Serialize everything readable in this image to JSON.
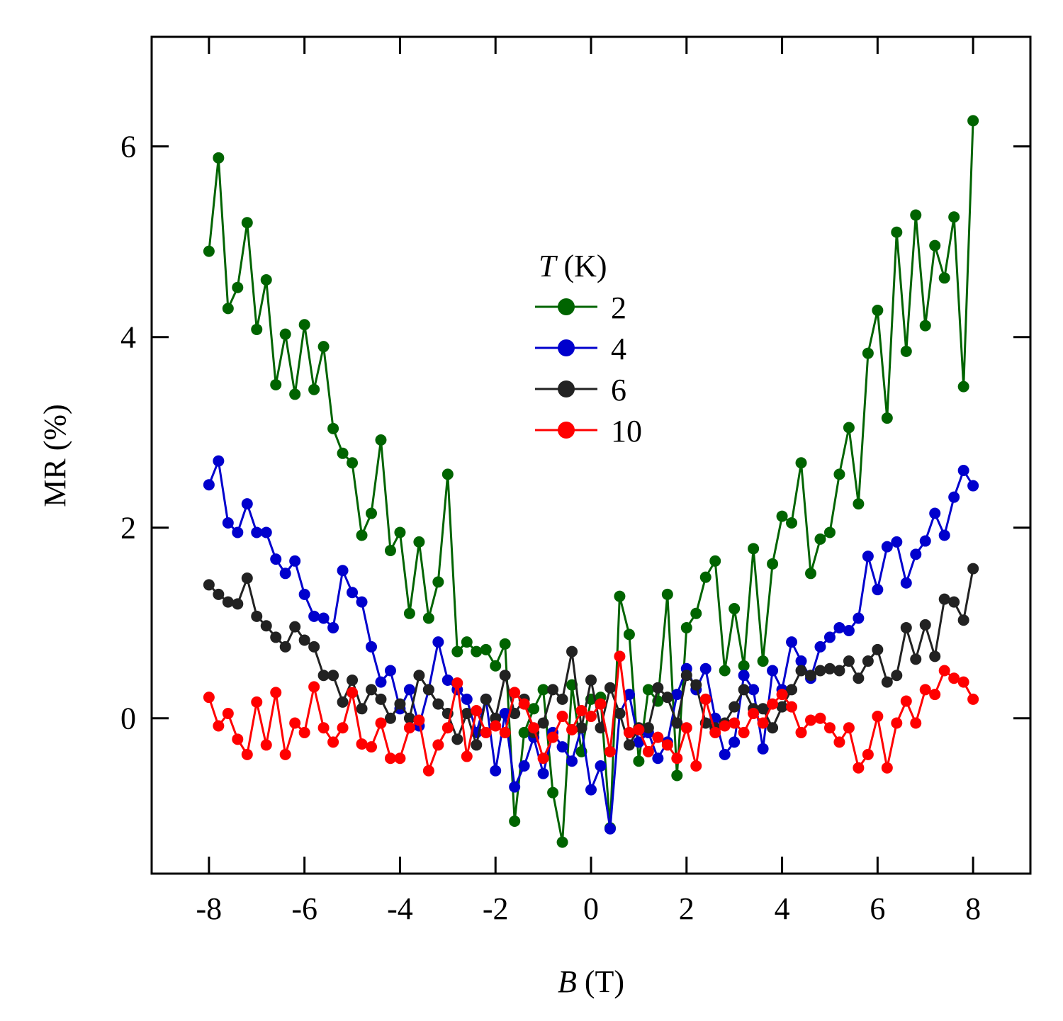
{
  "chart_data": {
    "type": "line",
    "title": "",
    "xlabel_var": "B",
    "xlabel_unit": "(T)",
    "ylabel": "MR (%)",
    "xlim": [
      -9.2,
      9.2
    ],
    "ylim": [
      -1.63,
      7.15
    ],
    "xticks": [
      -8,
      -6,
      -4,
      -2,
      0,
      2,
      4,
      6,
      8
    ],
    "xtick_labels": [
      "-8",
      "-6",
      "-4",
      "-2",
      "0",
      "2",
      "4",
      "6",
      "8"
    ],
    "yticks": [
      0,
      2,
      4,
      6
    ],
    "ytick_labels": [
      "0",
      "2",
      "4",
      "6"
    ],
    "grid": false,
    "legend": {
      "title_var": "T",
      "title_unit": "(K)",
      "placement": "upper-center"
    },
    "series": [
      {
        "name": "2",
        "color": "#006400",
        "x": [
          -8,
          -7.8,
          -7.6,
          -7.4,
          -7.2,
          -7.0,
          -6.8,
          -6.6,
          -6.4,
          -6.2,
          -6.0,
          -5.8,
          -5.6,
          -5.4,
          -5.2,
          -5.0,
          -4.8,
          -4.6,
          -4.4,
          -4.2,
          -4.0,
          -3.8,
          -3.6,
          -3.4,
          -3.2,
          -3.0,
          -2.8,
          -2.6,
          -2.4,
          -2.2,
          -2.0,
          -1.8,
          -1.6,
          -1.4,
          -1.2,
          -1.0,
          -0.8,
          -0.6,
          -0.4,
          -0.2,
          0,
          0.2,
          0.4,
          0.6,
          0.8,
          1.0,
          1.2,
          1.4,
          1.6,
          1.8,
          2.0,
          2.2,
          2.4,
          2.6,
          2.8,
          3.0,
          3.2,
          3.4,
          3.6,
          3.8,
          4.0,
          4.2,
          4.4,
          4.6,
          4.8,
          5.0,
          5.2,
          5.4,
          5.6,
          5.8,
          6.0,
          6.2,
          6.4,
          6.6,
          6.8,
          7.0,
          7.2,
          7.4,
          7.6,
          7.8,
          8.0
        ],
        "y": [
          4.9,
          5.88,
          4.3,
          4.52,
          5.2,
          4.08,
          4.6,
          3.5,
          4.03,
          3.4,
          4.13,
          3.45,
          3.9,
          3.04,
          2.78,
          2.68,
          1.92,
          2.15,
          2.92,
          1.76,
          1.95,
          1.1,
          1.85,
          1.05,
          1.43,
          2.56,
          0.7,
          0.8,
          0.7,
          0.72,
          0.55,
          0.78,
          -1.08,
          -0.15,
          0.1,
          0.3,
          -0.78,
          -1.3,
          0.35,
          -0.35,
          0.2,
          0.22,
          -1.15,
          1.28,
          0.88,
          -0.45,
          0.3,
          0.18,
          1.3,
          -0.6,
          0.95,
          1.1,
          1.48,
          1.65,
          0.5,
          1.15,
          0.55,
          1.78,
          0.6,
          1.62,
          2.12,
          2.05,
          2.68,
          1.52,
          1.88,
          1.95,
          2.56,
          3.05,
          2.25,
          3.83,
          4.28,
          3.15,
          5.1,
          3.85,
          5.28,
          4.12,
          4.96,
          4.62,
          5.26,
          3.48,
          6.27
        ]
      },
      {
        "name": "4",
        "color": "#0000CD",
        "x": [
          -8,
          -7.8,
          -7.6,
          -7.4,
          -7.2,
          -7.0,
          -6.8,
          -6.6,
          -6.4,
          -6.2,
          -6.0,
          -5.8,
          -5.6,
          -5.4,
          -5.2,
          -5.0,
          -4.8,
          -4.6,
          -4.4,
          -4.2,
          -4.0,
          -3.8,
          -3.6,
          -3.4,
          -3.2,
          -3.0,
          -2.8,
          -2.6,
          -2.4,
          -2.2,
          -2.0,
          -1.8,
          -1.6,
          -1.4,
          -1.2,
          -1.0,
          -0.8,
          -0.6,
          -0.4,
          -0.2,
          0,
          0.2,
          0.4,
          0.6,
          0.8,
          1.0,
          1.2,
          1.4,
          1.6,
          1.8,
          2.0,
          2.2,
          2.4,
          2.6,
          2.8,
          3.0,
          3.2,
          3.4,
          3.6,
          3.8,
          4.0,
          4.2,
          4.4,
          4.6,
          4.8,
          5.0,
          5.2,
          5.4,
          5.6,
          5.8,
          6.0,
          6.2,
          6.4,
          6.6,
          6.8,
          7.0,
          7.2,
          7.4,
          7.6,
          7.8,
          8.0
        ],
        "y": [
          2.45,
          2.7,
          2.05,
          1.95,
          2.25,
          1.95,
          1.95,
          1.67,
          1.52,
          1.65,
          1.3,
          1.07,
          1.05,
          0.95,
          1.55,
          1.32,
          1.22,
          0.75,
          0.38,
          0.5,
          0.1,
          0.3,
          -0.08,
          0.3,
          0.8,
          0.4,
          0.3,
          0.2,
          -0.15,
          0.2,
          -0.55,
          0.05,
          -0.72,
          -0.5,
          -0.2,
          -0.58,
          -0.15,
          -0.3,
          -0.45,
          -0.1,
          -0.75,
          -0.5,
          -1.16,
          0.05,
          0.25,
          -0.25,
          -0.15,
          -0.42,
          -0.25,
          0.25,
          0.52,
          0.3,
          0.52,
          0.0,
          -0.38,
          -0.25,
          0.45,
          0.3,
          -0.32,
          0.5,
          0.3,
          0.8,
          0.6,
          0.42,
          0.75,
          0.85,
          0.95,
          0.92,
          1.05,
          1.7,
          1.35,
          1.8,
          1.85,
          1.42,
          1.72,
          1.86,
          2.15,
          1.92,
          2.32,
          2.6,
          2.44
        ]
      },
      {
        "name": "6",
        "color": "#222222",
        "x": [
          -8,
          -7.8,
          -7.6,
          -7.4,
          -7.2,
          -7.0,
          -6.8,
          -6.6,
          -6.4,
          -6.2,
          -6.0,
          -5.8,
          -5.6,
          -5.4,
          -5.2,
          -5.0,
          -4.8,
          -4.6,
          -4.4,
          -4.2,
          -4.0,
          -3.8,
          -3.6,
          -3.4,
          -3.2,
          -3.0,
          -2.8,
          -2.6,
          -2.4,
          -2.2,
          -2.0,
          -1.8,
          -1.6,
          -1.4,
          -1.2,
          -1.0,
          -0.8,
          -0.6,
          -0.4,
          -0.2,
          0,
          0.2,
          0.4,
          0.6,
          0.8,
          1.0,
          1.2,
          1.4,
          1.6,
          1.8,
          2.0,
          2.2,
          2.4,
          2.6,
          2.8,
          3.0,
          3.2,
          3.4,
          3.6,
          3.8,
          4.0,
          4.2,
          4.4,
          4.6,
          4.8,
          5.0,
          5.2,
          5.4,
          5.6,
          5.8,
          6.0,
          6.2,
          6.4,
          6.6,
          6.8,
          7.0,
          7.2,
          7.4,
          7.6,
          7.8,
          8.0
        ],
        "y": [
          1.4,
          1.3,
          1.22,
          1.2,
          1.47,
          1.07,
          0.97,
          0.85,
          0.75,
          0.96,
          0.82,
          0.75,
          0.45,
          0.45,
          0.17,
          0.4,
          0.1,
          0.3,
          0.2,
          0.0,
          0.15,
          0.0,
          0.45,
          0.3,
          0.15,
          0.05,
          -0.22,
          0.05,
          -0.28,
          0.2,
          0.0,
          0.45,
          0.05,
          0.2,
          -0.15,
          -0.05,
          0.3,
          0.2,
          0.7,
          -0.1,
          0.4,
          -0.1,
          0.32,
          0.05,
          -0.28,
          -0.1,
          -0.1,
          0.32,
          0.22,
          -0.05,
          0.45,
          0.35,
          -0.05,
          -0.1,
          -0.05,
          0.12,
          0.3,
          0.1,
          0.1,
          -0.1,
          0.12,
          0.3,
          0.5,
          0.45,
          0.5,
          0.52,
          0.5,
          0.6,
          0.42,
          0.6,
          0.72,
          0.38,
          0.45,
          0.95,
          0.62,
          0.98,
          0.65,
          1.25,
          1.22,
          1.03,
          1.57
        ]
      },
      {
        "name": "10",
        "color": "#FF0000",
        "x": [
          -8,
          -7.8,
          -7.6,
          -7.4,
          -7.2,
          -7.0,
          -6.8,
          -6.6,
          -6.4,
          -6.2,
          -6.0,
          -5.8,
          -5.6,
          -5.4,
          -5.2,
          -5.0,
          -4.8,
          -4.6,
          -4.4,
          -4.2,
          -4.0,
          -3.8,
          -3.6,
          -3.4,
          -3.2,
          -3.0,
          -2.8,
          -2.6,
          -2.4,
          -2.2,
          -2.0,
          -1.8,
          -1.6,
          -1.4,
          -1.2,
          -1.0,
          -0.8,
          -0.6,
          -0.4,
          -0.2,
          0,
          0.2,
          0.4,
          0.6,
          0.8,
          1.0,
          1.2,
          1.4,
          1.6,
          1.8,
          2.0,
          2.2,
          2.4,
          2.6,
          2.8,
          3.0,
          3.2,
          3.4,
          3.6,
          3.8,
          4.0,
          4.2,
          4.4,
          4.6,
          4.8,
          5.0,
          5.2,
          5.4,
          5.6,
          5.8,
          6.0,
          6.2,
          6.4,
          6.6,
          6.8,
          7.0,
          7.2,
          7.4,
          7.6,
          7.8,
          8.0
        ],
        "y": [
          0.22,
          -0.08,
          0.05,
          -0.22,
          -0.38,
          0.17,
          -0.28,
          0.27,
          -0.38,
          -0.05,
          -0.15,
          0.33,
          -0.1,
          -0.25,
          -0.1,
          0.27,
          -0.27,
          -0.3,
          -0.05,
          -0.42,
          -0.42,
          -0.1,
          -0.02,
          -0.55,
          -0.28,
          -0.1,
          0.37,
          -0.4,
          0.08,
          -0.15,
          -0.08,
          -0.15,
          0.27,
          0.15,
          -0.1,
          -0.42,
          -0.2,
          0.02,
          -0.12,
          0.08,
          0.02,
          0.15,
          -0.35,
          0.65,
          -0.15,
          -0.12,
          -0.35,
          -0.2,
          -0.28,
          -0.42,
          -0.1,
          -0.5,
          0.2,
          -0.15,
          -0.08,
          -0.05,
          -0.15,
          0.05,
          -0.05,
          0.15,
          0.25,
          0.12,
          -0.15,
          -0.02,
          0.0,
          -0.1,
          -0.25,
          -0.1,
          -0.52,
          -0.38,
          0.02,
          -0.52,
          -0.05,
          0.18,
          -0.05,
          0.3,
          0.25,
          0.5,
          0.42,
          0.38,
          0.2
        ]
      }
    ]
  }
}
